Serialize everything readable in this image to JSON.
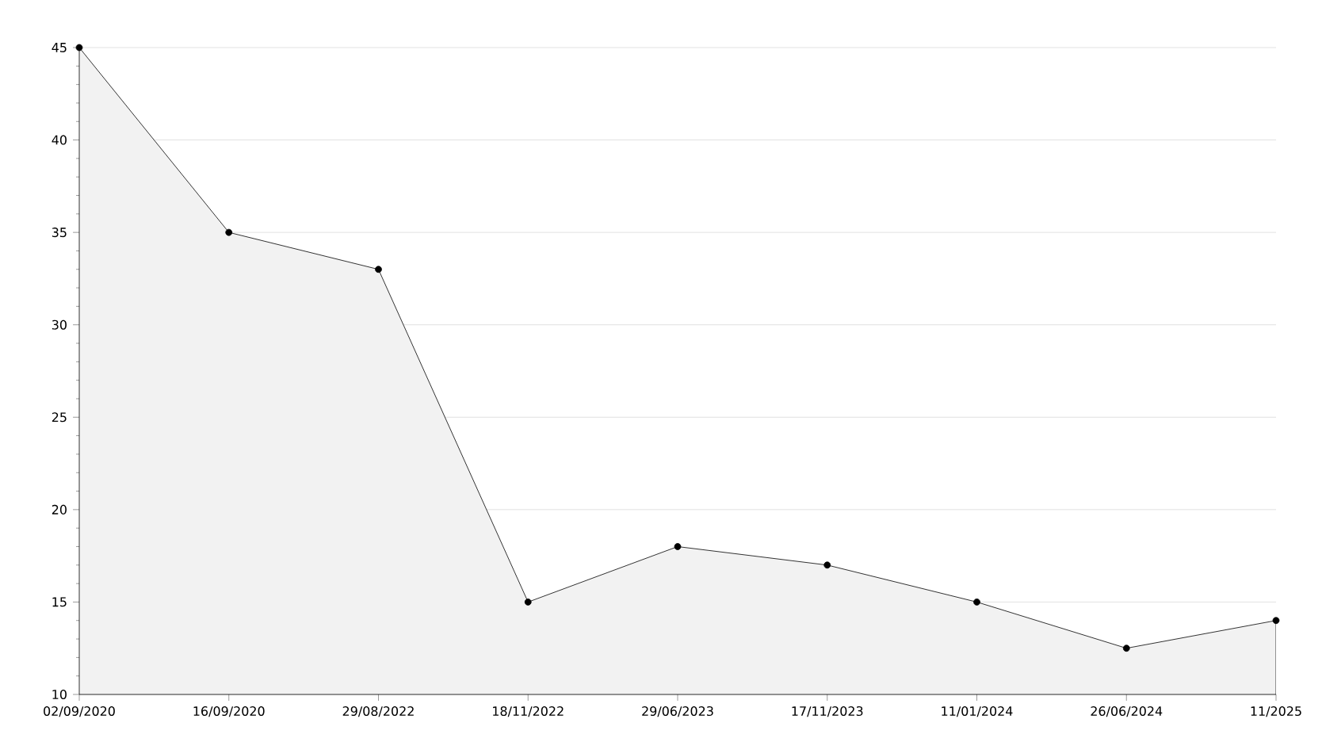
{
  "chart_data": {
    "type": "area",
    "categories": [
      "02/09/2020",
      "16/09/2020",
      "29/08/2022",
      "18/11/2022",
      "29/06/2023",
      "17/11/2023",
      "11/01/2024",
      "26/06/2024",
      "11/2025"
    ],
    "series": [
      {
        "color": "#000000",
        "values": [
          45,
          35,
          33,
          15,
          18,
          17,
          15,
          12.5,
          14
        ]
      }
    ],
    "ylim": [
      10,
      45
    ],
    "yticks": [
      10,
      15,
      20,
      25,
      30,
      35,
      40,
      45
    ],
    "grid": "y",
    "marker": "circle",
    "line_style": "solid"
  }
}
